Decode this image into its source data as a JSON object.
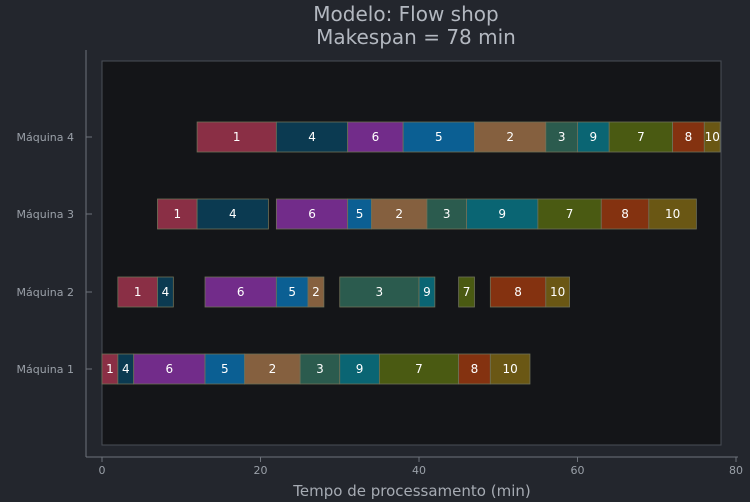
{
  "chart_data": {
    "type": "gantt",
    "title": "Modelo: Flow shop",
    "subtitle": "Makespan = 78 min",
    "xlabel": "Tempo de processamento (min)",
    "ylabel": "",
    "xlim": [
      0,
      78
    ],
    "xticks": [
      0,
      20,
      40,
      60,
      80
    ],
    "grid": false,
    "legend": "none",
    "machines": [
      "Máquina 1",
      "Máquina 2",
      "Máquina 3",
      "Máquina 4"
    ],
    "job_colors": {
      "1": "#8a2f45",
      "2": "#85603f",
      "3": "#2b5b4e",
      "4": "#0b3a51",
      "5": "#0b5f93",
      "6": "#722c8a",
      "7": "#4a5a12",
      "8": "#843210",
      "9": "#0a6573",
      "10": "#6a5714"
    },
    "operations": [
      {
        "machine": "Máquina 1",
        "job": "1",
        "start": 0,
        "end": 2
      },
      {
        "machine": "Máquina 1",
        "job": "4",
        "start": 2,
        "end": 4
      },
      {
        "machine": "Máquina 1",
        "job": "6",
        "start": 4,
        "end": 13
      },
      {
        "machine": "Máquina 1",
        "job": "5",
        "start": 13,
        "end": 18
      },
      {
        "machine": "Máquina 1",
        "job": "2",
        "start": 18,
        "end": 25
      },
      {
        "machine": "Máquina 1",
        "job": "3",
        "start": 25,
        "end": 30
      },
      {
        "machine": "Máquina 1",
        "job": "9",
        "start": 30,
        "end": 35
      },
      {
        "machine": "Máquina 1",
        "job": "7",
        "start": 35,
        "end": 45
      },
      {
        "machine": "Máquina 1",
        "job": "8",
        "start": 45,
        "end": 49
      },
      {
        "machine": "Máquina 1",
        "job": "10",
        "start": 49,
        "end": 54
      },
      {
        "machine": "Máquina 2",
        "job": "1",
        "start": 2,
        "end": 7
      },
      {
        "machine": "Máquina 2",
        "job": "4",
        "start": 7,
        "end": 9
      },
      {
        "machine": "Máquina 2",
        "job": "6",
        "start": 13,
        "end": 22
      },
      {
        "machine": "Máquina 2",
        "job": "5",
        "start": 22,
        "end": 26
      },
      {
        "machine": "Máquina 2",
        "job": "2",
        "start": 26,
        "end": 28
      },
      {
        "machine": "Máquina 2",
        "job": "3",
        "start": 30,
        "end": 40
      },
      {
        "machine": "Máquina 2",
        "job": "9",
        "start": 40,
        "end": 42
      },
      {
        "machine": "Máquina 2",
        "job": "7",
        "start": 45,
        "end": 47
      },
      {
        "machine": "Máquina 2",
        "job": "8",
        "start": 49,
        "end": 56
      },
      {
        "machine": "Máquina 2",
        "job": "10",
        "start": 56,
        "end": 59
      },
      {
        "machine": "Máquina 3",
        "job": "1",
        "start": 7,
        "end": 12
      },
      {
        "machine": "Máquina 3",
        "job": "4",
        "start": 12,
        "end": 21
      },
      {
        "machine": "Máquina 3",
        "job": "6",
        "start": 22,
        "end": 31
      },
      {
        "machine": "Máquina 3",
        "job": "5",
        "start": 31,
        "end": 34
      },
      {
        "machine": "Máquina 3",
        "job": "2",
        "start": 34,
        "end": 41
      },
      {
        "machine": "Máquina 3",
        "job": "3",
        "start": 41,
        "end": 46
      },
      {
        "machine": "Máquina 3",
        "job": "9",
        "start": 46,
        "end": 55
      },
      {
        "machine": "Máquina 3",
        "job": "7",
        "start": 55,
        "end": 63
      },
      {
        "machine": "Máquina 3",
        "job": "8",
        "start": 63,
        "end": 69
      },
      {
        "machine": "Máquina 3",
        "job": "10",
        "start": 69,
        "end": 75
      },
      {
        "machine": "Máquina 4",
        "job": "1",
        "start": 12,
        "end": 22
      },
      {
        "machine": "Máquina 4",
        "job": "4",
        "start": 22,
        "end": 31
      },
      {
        "machine": "Máquina 4",
        "job": "6",
        "start": 31,
        "end": 38
      },
      {
        "machine": "Máquina 4",
        "job": "5",
        "start": 38,
        "end": 47
      },
      {
        "machine": "Máquina 4",
        "job": "2",
        "start": 47,
        "end": 56
      },
      {
        "machine": "Máquina 4",
        "job": "3",
        "start": 56,
        "end": 60
      },
      {
        "machine": "Máquina 4",
        "job": "9",
        "start": 60,
        "end": 64
      },
      {
        "machine": "Máquina 4",
        "job": "7",
        "start": 64,
        "end": 72
      },
      {
        "machine": "Máquina 4",
        "job": "8",
        "start": 72,
        "end": 76
      },
      {
        "machine": "Máquina 4",
        "job": "10",
        "start": 76,
        "end": 78
      }
    ]
  }
}
